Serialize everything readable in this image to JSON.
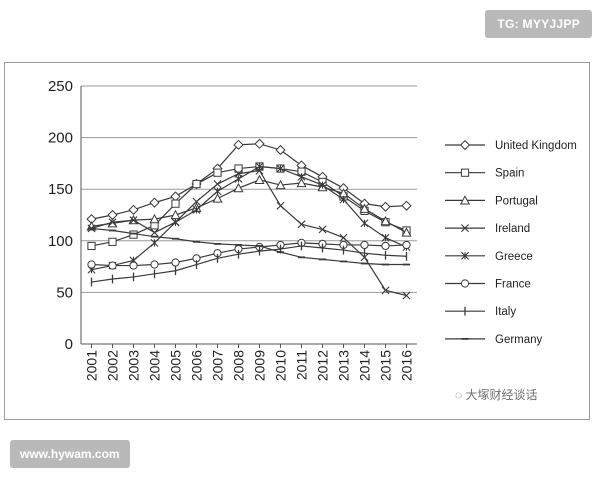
{
  "badges": {
    "top": "TG: MYYJJPP",
    "bottom": "www.hywam.com"
  },
  "watermark": "大塚财经谈话",
  "chart_data": {
    "type": "line",
    "title": "",
    "xlabel": "",
    "ylabel": "",
    "ylim": [
      0,
      250
    ],
    "yticks": [
      0,
      50,
      100,
      150,
      200,
      250
    ],
    "grid": "horizontal",
    "legend_position": "right",
    "categories": [
      "2001",
      "2002",
      "2003",
      "2004",
      "2005",
      "2006",
      "2007",
      "2008",
      "2009",
      "2010",
      "2011",
      "2012",
      "2013",
      "2014",
      "2015",
      "2016"
    ],
    "series": [
      {
        "name": "United Kingdom",
        "marker": "diamond",
        "values": [
          121,
          125,
          130,
          137,
          143,
          155,
          170,
          193,
          194,
          188,
          173,
          162,
          151,
          136,
          133,
          134
        ]
      },
      {
        "name": "Spain",
        "marker": "square",
        "values": [
          95,
          99,
          106,
          115,
          136,
          155,
          166,
          170,
          172,
          170,
          167,
          157,
          143,
          129,
          118,
          110
        ]
      },
      {
        "name": "Portugal",
        "marker": "triangle",
        "values": [
          114,
          117,
          120,
          121,
          125,
          132,
          141,
          151,
          159,
          154,
          156,
          152,
          146,
          131,
          119,
          108
        ]
      },
      {
        "name": "Ireland",
        "marker": "x",
        "values": [
          112,
          118,
          120,
          108,
          118,
          138,
          155,
          165,
          168,
          134,
          116,
          111,
          103,
          84,
          52,
          47
        ]
      },
      {
        "name": "Greece",
        "marker": "star",
        "values": [
          72,
          76,
          81,
          98,
          118,
          130,
          148,
          160,
          172,
          170,
          162,
          154,
          140,
          117,
          103,
          94
        ]
      },
      {
        "name": "France",
        "marker": "circle",
        "values": [
          77,
          76,
          76,
          77,
          79,
          83,
          88,
          92,
          94,
          96,
          98,
          97,
          96,
          96,
          95,
          96
        ]
      },
      {
        "name": "Italy",
        "marker": "plus",
        "values": [
          60,
          63,
          65,
          68,
          71,
          77,
          83,
          87,
          90,
          92,
          95,
          93,
          91,
          88,
          86,
          85
        ]
      },
      {
        "name": "Germany",
        "marker": "dash",
        "values": [
          112,
          110,
          107,
          104,
          102,
          99,
          97,
          96,
          95,
          89,
          84,
          82,
          80,
          78,
          77,
          77
        ]
      }
    ],
    "colors": {
      "line": "#3a3a3a",
      "grid": "#9a9a9a"
    }
  }
}
